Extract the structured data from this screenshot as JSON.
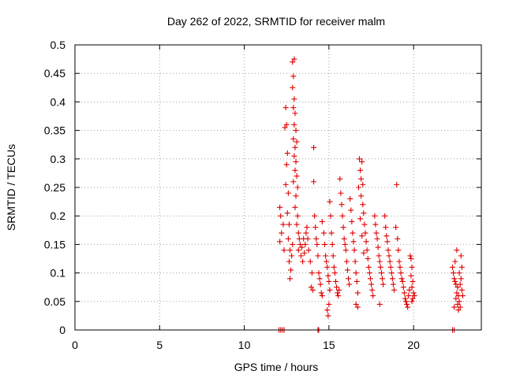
{
  "chart_data": {
    "type": "scatter",
    "title": "Day 262 of 2022, SRMTID for receiver malm",
    "xlabel": "GPS time / hours",
    "ylabel": "SRMTID / TECUs",
    "xlim": [
      0,
      24
    ],
    "ylim": [
      0,
      0.5
    ],
    "x_ticks": [
      0,
      5,
      10,
      15,
      20
    ],
    "x_tick_labels": [
      "0",
      "5",
      "10",
      "15",
      "20"
    ],
    "y_ticks": [
      0,
      0.05,
      0.1,
      0.15,
      0.2,
      0.25,
      0.3,
      0.35,
      0.4,
      0.45,
      0.5
    ],
    "y_tick_labels": [
      "0",
      "0.05",
      "0.1",
      "0.15",
      "0.2",
      "0.25",
      "0.3",
      "0.35",
      "0.4",
      "0.45",
      "0.5"
    ],
    "grid": true,
    "marker": "+",
    "marker_color": "#e00000",
    "series": [
      {
        "name": "SRMTID",
        "points": [
          [
            12.05,
            0.0
          ],
          [
            12.15,
            0.0
          ],
          [
            12.25,
            0.0
          ],
          [
            12.35,
            0.0
          ],
          [
            14.35,
            0.0
          ],
          [
            14.4,
            0.0
          ],
          [
            22.3,
            0.0
          ],
          [
            22.4,
            0.0
          ],
          [
            12.1,
            0.215
          ],
          [
            12.15,
            0.2
          ],
          [
            12.2,
            0.17
          ],
          [
            12.1,
            0.155
          ],
          [
            12.3,
            0.185
          ],
          [
            12.35,
            0.14
          ],
          [
            12.45,
            0.39
          ],
          [
            12.5,
            0.36
          ],
          [
            12.4,
            0.355
          ],
          [
            12.55,
            0.31
          ],
          [
            12.5,
            0.29
          ],
          [
            12.45,
            0.255
          ],
          [
            12.6,
            0.24
          ],
          [
            12.55,
            0.205
          ],
          [
            12.65,
            0.185
          ],
          [
            12.6,
            0.16
          ],
          [
            12.7,
            0.14
          ],
          [
            12.65,
            0.12
          ],
          [
            12.75,
            0.105
          ],
          [
            12.7,
            0.09
          ],
          [
            12.8,
            0.13
          ],
          [
            12.85,
            0.15
          ],
          [
            12.85,
            0.47
          ],
          [
            12.95,
            0.475
          ],
          [
            12.9,
            0.445
          ],
          [
            12.85,
            0.425
          ],
          [
            12.95,
            0.405
          ],
          [
            12.9,
            0.39
          ],
          [
            13.0,
            0.38
          ],
          [
            12.95,
            0.36
          ],
          [
            13.05,
            0.35
          ],
          [
            12.9,
            0.335
          ],
          [
            13.0,
            0.32
          ],
          [
            13.1,
            0.33
          ],
          [
            12.95,
            0.305
          ],
          [
            13.05,
            0.295
          ],
          [
            13.0,
            0.28
          ],
          [
            13.1,
            0.27
          ],
          [
            13.15,
            0.25
          ],
          [
            12.9,
            0.26
          ],
          [
            13.05,
            0.235
          ],
          [
            13.0,
            0.215
          ],
          [
            13.15,
            0.2
          ],
          [
            13.1,
            0.185
          ],
          [
            13.2,
            0.17
          ],
          [
            13.25,
            0.16
          ],
          [
            13.3,
            0.15
          ],
          [
            13.2,
            0.14
          ],
          [
            13.35,
            0.13
          ],
          [
            13.4,
            0.145
          ],
          [
            13.5,
            0.16
          ],
          [
            13.45,
            0.12
          ],
          [
            13.55,
            0.135
          ],
          [
            13.6,
            0.15
          ],
          [
            13.65,
            0.17
          ],
          [
            13.7,
            0.18
          ],
          [
            13.75,
            0.16
          ],
          [
            13.8,
            0.14
          ],
          [
            13.9,
            0.12
          ],
          [
            14.0,
            0.1
          ],
          [
            13.95,
            0.075
          ],
          [
            14.05,
            0.07
          ],
          [
            14.1,
            0.32
          ],
          [
            14.1,
            0.26
          ],
          [
            14.15,
            0.2
          ],
          [
            14.2,
            0.18
          ],
          [
            14.25,
            0.16
          ],
          [
            14.3,
            0.15
          ],
          [
            14.35,
            0.13
          ],
          [
            14.4,
            0.1
          ],
          [
            14.45,
            0.09
          ],
          [
            14.5,
            0.08
          ],
          [
            14.55,
            0.065
          ],
          [
            14.6,
            0.06
          ],
          [
            14.6,
            0.19
          ],
          [
            14.7,
            0.17
          ],
          [
            14.75,
            0.15
          ],
          [
            14.8,
            0.13
          ],
          [
            14.85,
            0.12
          ],
          [
            14.9,
            0.11
          ],
          [
            14.95,
            0.095
          ],
          [
            15.0,
            0.085
          ],
          [
            15.05,
            0.07
          ],
          [
            15.0,
            0.045
          ],
          [
            14.9,
            0.035
          ],
          [
            14.95,
            0.025
          ],
          [
            15.05,
            0.225
          ],
          [
            15.1,
            0.2
          ],
          [
            15.15,
            0.17
          ],
          [
            15.2,
            0.15
          ],
          [
            15.25,
            0.13
          ],
          [
            15.3,
            0.11
          ],
          [
            15.35,
            0.1
          ],
          [
            15.4,
            0.085
          ],
          [
            15.45,
            0.075
          ],
          [
            15.5,
            0.065
          ],
          [
            15.55,
            0.06
          ],
          [
            15.6,
            0.07
          ],
          [
            15.65,
            0.265
          ],
          [
            15.7,
            0.24
          ],
          [
            15.75,
            0.22
          ],
          [
            15.8,
            0.2
          ],
          [
            15.85,
            0.18
          ],
          [
            15.9,
            0.16
          ],
          [
            15.95,
            0.15
          ],
          [
            16.0,
            0.14
          ],
          [
            16.05,
            0.12
          ],
          [
            16.1,
            0.105
          ],
          [
            16.15,
            0.09
          ],
          [
            16.2,
            0.08
          ],
          [
            16.25,
            0.23
          ],
          [
            16.3,
            0.21
          ],
          [
            16.35,
            0.19
          ],
          [
            16.4,
            0.17
          ],
          [
            16.45,
            0.155
          ],
          [
            16.5,
            0.14
          ],
          [
            16.55,
            0.12
          ],
          [
            16.6,
            0.1
          ],
          [
            16.65,
            0.085
          ],
          [
            16.7,
            0.065
          ],
          [
            16.6,
            0.045
          ],
          [
            16.7,
            0.04
          ],
          [
            16.8,
            0.3
          ],
          [
            16.85,
            0.28
          ],
          [
            16.9,
            0.265
          ],
          [
            16.95,
            0.295
          ],
          [
            17.0,
            0.255
          ],
          [
            16.75,
            0.25
          ],
          [
            16.9,
            0.235
          ],
          [
            17.0,
            0.22
          ],
          [
            17.05,
            0.205
          ],
          [
            16.85,
            0.195
          ],
          [
            17.1,
            0.185
          ],
          [
            17.15,
            0.17
          ],
          [
            16.95,
            0.165
          ],
          [
            17.2,
            0.155
          ],
          [
            17.25,
            0.14
          ],
          [
            17.05,
            0.135
          ],
          [
            17.3,
            0.125
          ],
          [
            17.35,
            0.11
          ],
          [
            17.4,
            0.1
          ],
          [
            17.45,
            0.09
          ],
          [
            17.5,
            0.08
          ],
          [
            17.55,
            0.07
          ],
          [
            17.6,
            0.06
          ],
          [
            17.7,
            0.2
          ],
          [
            17.75,
            0.185
          ],
          [
            17.8,
            0.17
          ],
          [
            17.85,
            0.16
          ],
          [
            17.9,
            0.145
          ],
          [
            17.95,
            0.13
          ],
          [
            18.0,
            0.12
          ],
          [
            18.05,
            0.11
          ],
          [
            18.1,
            0.1
          ],
          [
            18.15,
            0.09
          ],
          [
            18.2,
            0.08
          ],
          [
            18.0,
            0.045
          ],
          [
            18.3,
            0.2
          ],
          [
            18.35,
            0.18
          ],
          [
            18.4,
            0.165
          ],
          [
            18.45,
            0.155
          ],
          [
            18.5,
            0.14
          ],
          [
            18.55,
            0.13
          ],
          [
            18.6,
            0.12
          ],
          [
            18.65,
            0.11
          ],
          [
            18.7,
            0.1
          ],
          [
            18.75,
            0.09
          ],
          [
            18.8,
            0.08
          ],
          [
            18.85,
            0.07
          ],
          [
            19.0,
            0.255
          ],
          [
            18.95,
            0.18
          ],
          [
            19.05,
            0.16
          ],
          [
            19.1,
            0.14
          ],
          [
            19.15,
            0.12
          ],
          [
            19.2,
            0.11
          ],
          [
            19.25,
            0.1
          ],
          [
            19.3,
            0.09
          ],
          [
            19.35,
            0.085
          ],
          [
            19.4,
            0.075
          ],
          [
            19.45,
            0.065
          ],
          [
            19.5,
            0.055
          ],
          [
            19.55,
            0.05
          ],
          [
            19.6,
            0.045
          ],
          [
            19.65,
            0.04
          ],
          [
            19.7,
            0.06
          ],
          [
            19.75,
            0.07
          ],
          [
            19.8,
            0.13
          ],
          [
            19.85,
            0.125
          ],
          [
            19.9,
            0.11
          ],
          [
            19.85,
            0.095
          ],
          [
            19.95,
            0.085
          ],
          [
            19.9,
            0.075
          ],
          [
            20.0,
            0.065
          ],
          [
            19.95,
            0.055
          ],
          [
            20.05,
            0.06
          ],
          [
            19.9,
            0.05
          ],
          [
            22.3,
            0.11
          ],
          [
            22.35,
            0.1
          ],
          [
            22.4,
            0.09
          ],
          [
            22.45,
            0.085
          ],
          [
            22.5,
            0.08
          ],
          [
            22.55,
            0.14
          ],
          [
            22.45,
            0.12
          ],
          [
            22.6,
            0.075
          ],
          [
            22.55,
            0.065
          ],
          [
            22.65,
            0.06
          ],
          [
            22.5,
            0.055
          ],
          [
            22.7,
            0.05
          ],
          [
            22.6,
            0.045
          ],
          [
            22.75,
            0.04
          ],
          [
            22.4,
            0.04
          ],
          [
            22.8,
            0.13
          ],
          [
            22.85,
            0.11
          ],
          [
            22.7,
            0.1
          ],
          [
            22.8,
            0.09
          ],
          [
            22.75,
            0.08
          ],
          [
            22.85,
            0.07
          ],
          [
            22.65,
            0.035
          ],
          [
            22.9,
            0.06
          ]
        ]
      }
    ]
  }
}
